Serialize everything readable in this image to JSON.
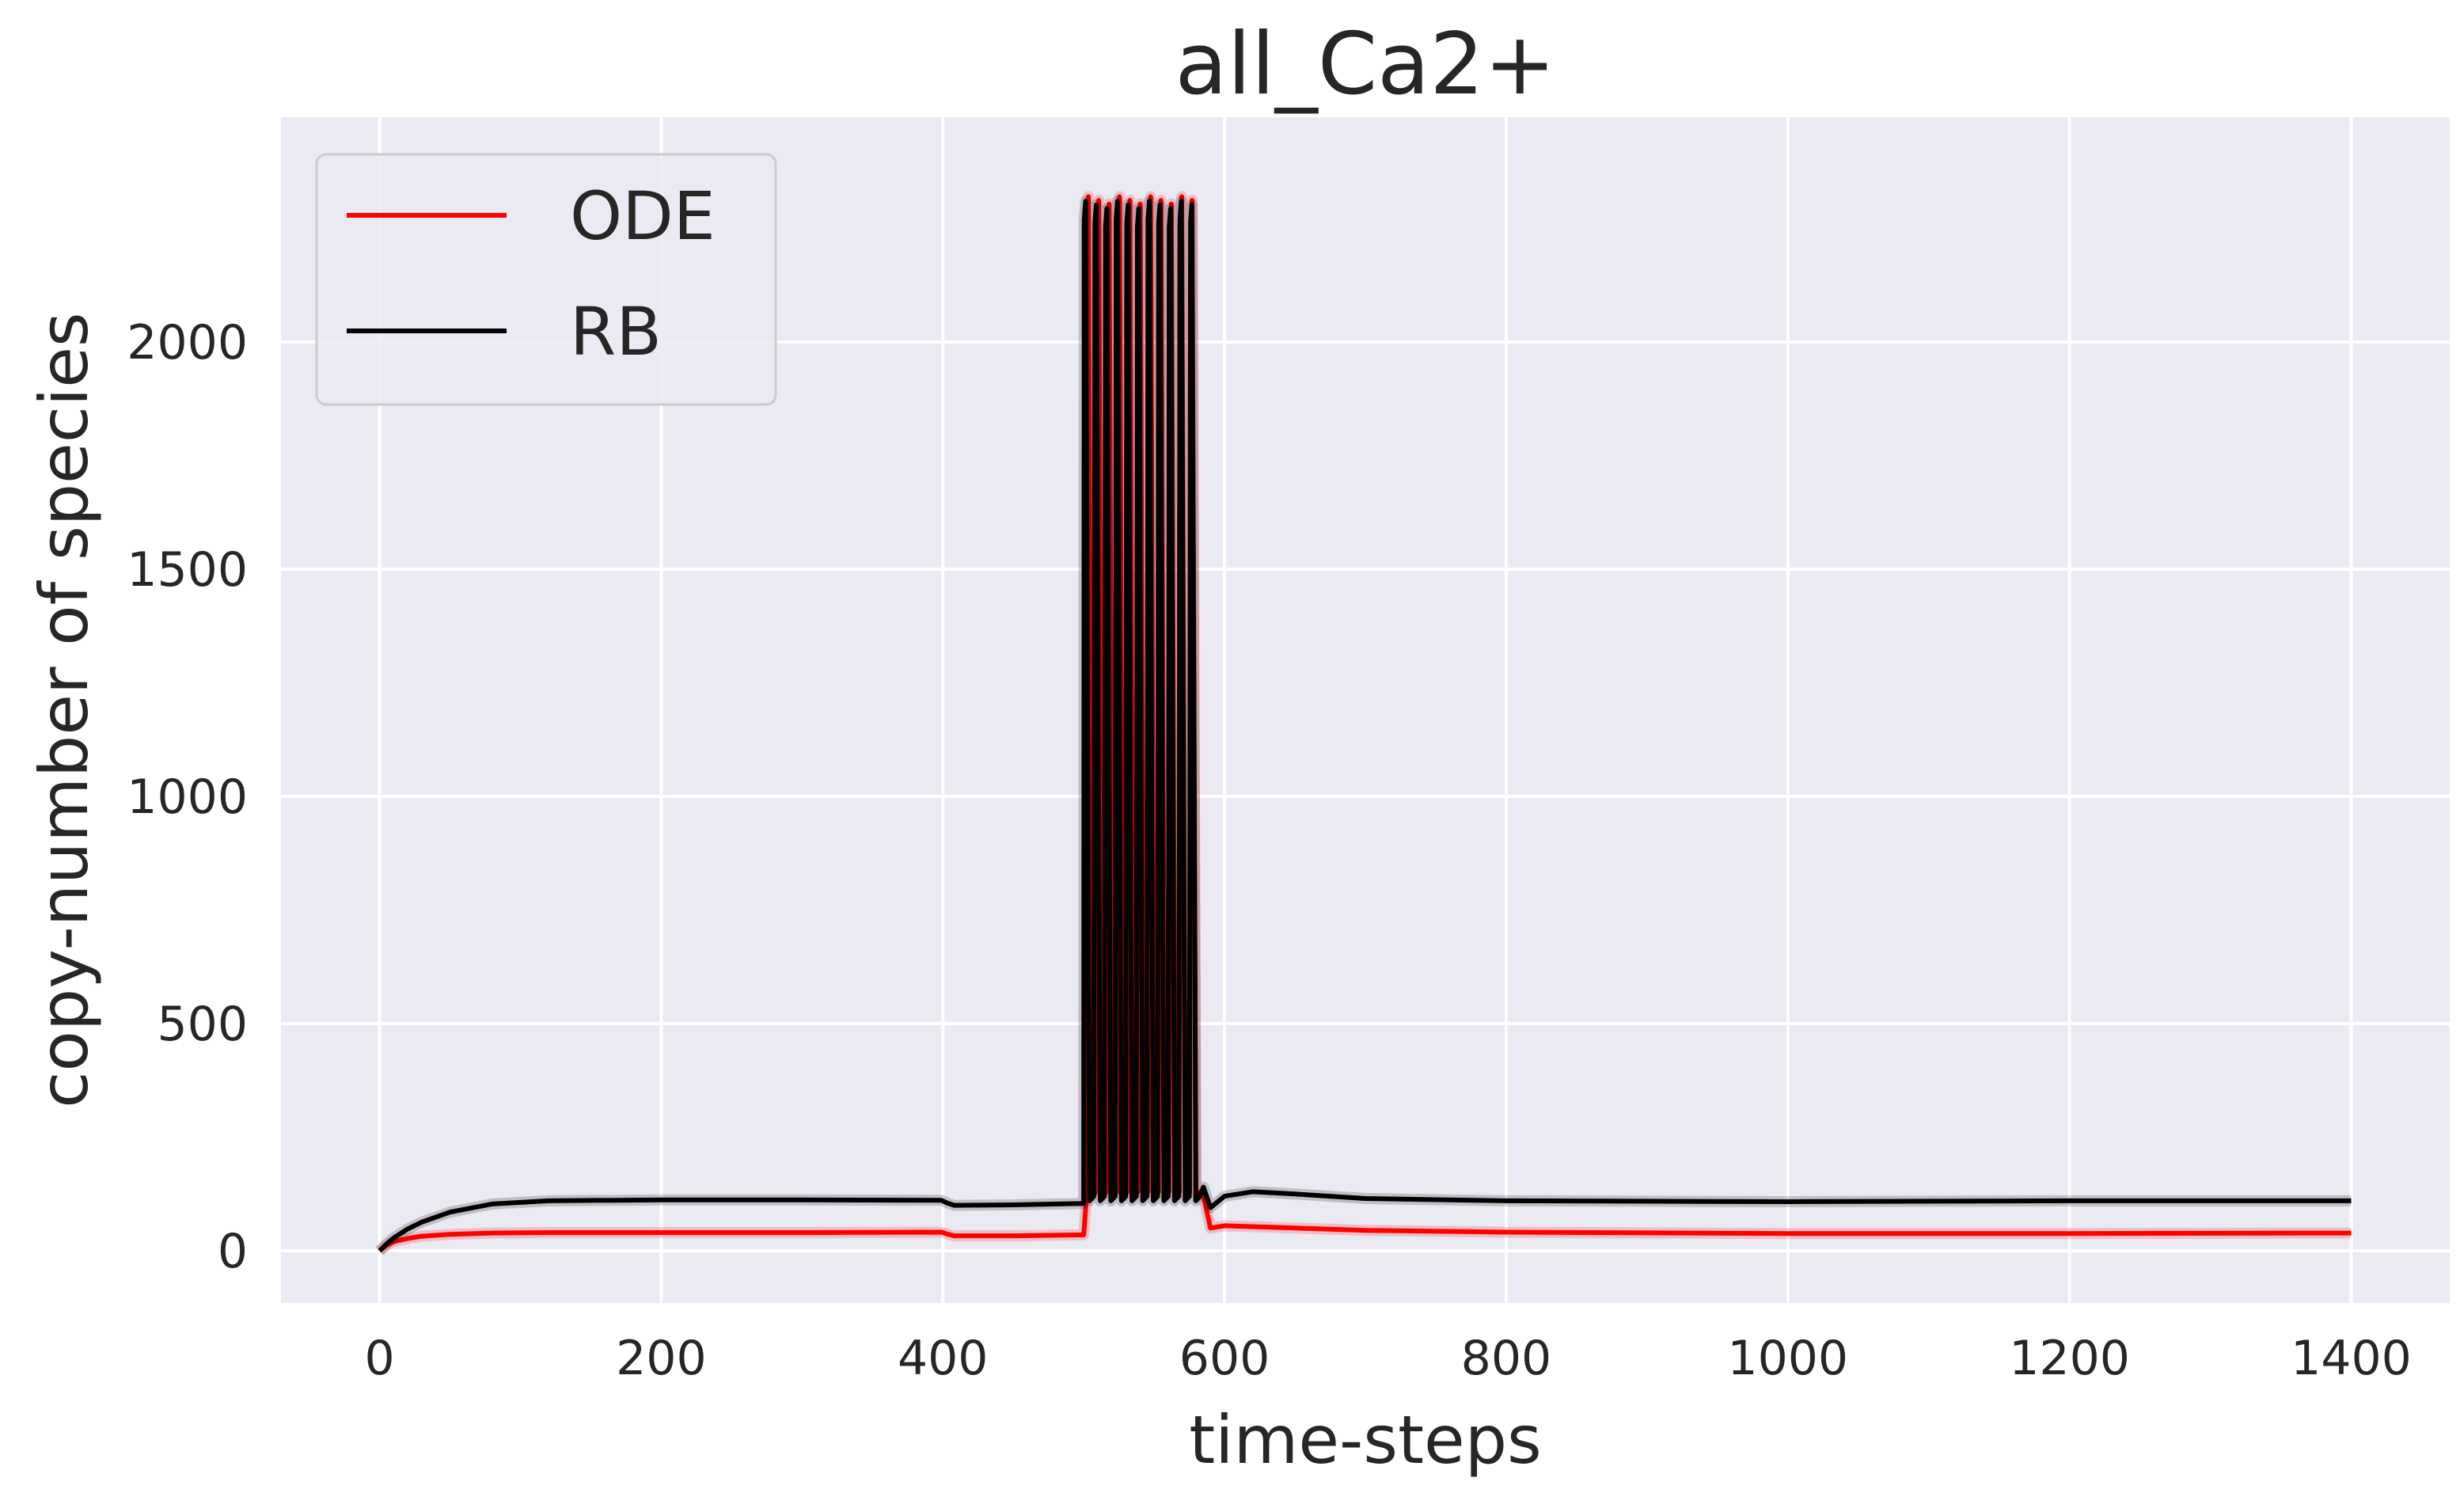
{
  "chart_data": {
    "type": "line",
    "title": "all_Ca2+",
    "xlabel": "time-steps",
    "ylabel": "copy-number of species",
    "xlim": [
      -70,
      1470
    ],
    "ylim": [
      -115,
      2495
    ],
    "xticks": [
      0,
      200,
      400,
      600,
      800,
      1000,
      1200,
      1400
    ],
    "yticks": [
      0,
      500,
      1000,
      1500,
      2000
    ],
    "grid": true,
    "background": "#eaeaf2",
    "grid_color": "#ffffff",
    "legend_position": "top-left",
    "series": [
      {
        "name": "ODE",
        "color": "#ff0000",
        "x": [
          0,
          5,
          10,
          20,
          30,
          50,
          80,
          120,
          200,
          300,
          399,
          403,
          408,
          450,
          500,
          502,
          585,
          590,
          600,
          650,
          700,
          800,
          1000,
          1200,
          1400
        ],
        "y": [
          0,
          12,
          20,
          27,
          32,
          36,
          39,
          40,
          40,
          40,
          41,
          37,
          33,
          33,
          35,
          120,
          120,
          50,
          55,
          50,
          45,
          41,
          38,
          38,
          39
        ],
        "burst": {
          "start": 502,
          "end": 583,
          "count": 11,
          "peak": 2320,
          "trough": 120
        }
      },
      {
        "name": "RB",
        "color": "#000000",
        "x": [
          0,
          5,
          10,
          20,
          30,
          50,
          80,
          120,
          200,
          300,
          399,
          403,
          408,
          450,
          500,
          502,
          585,
          590,
          600,
          620,
          650,
          700,
          800,
          1000,
          1200,
          1400
        ],
        "y": [
          0,
          15,
          28,
          48,
          63,
          85,
          103,
          110,
          112,
          112,
          111,
          105,
          100,
          101,
          104,
          140,
          140,
          95,
          120,
          130,
          125,
          115,
          110,
          108,
          110,
          110
        ],
        "burst": {
          "start": 500,
          "end": 583,
          "count": 11,
          "peak": 2310,
          "trough": 110
        }
      }
    ]
  }
}
